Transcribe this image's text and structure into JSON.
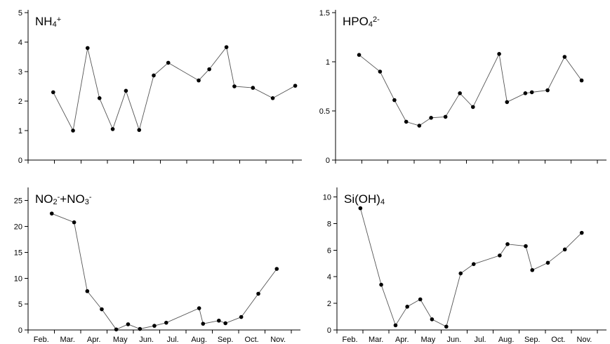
{
  "chart_data": [
    {
      "type": "line",
      "title_parts": [
        {
          "t": "NH"
        },
        {
          "t": "4",
          "pos": "sub"
        },
        {
          "t": "+",
          "pos": "sup"
        }
      ],
      "ylim": [
        0,
        5
      ],
      "yticks": [
        "0",
        "1",
        "2",
        "3",
        "4",
        "5"
      ],
      "ytick_values": [
        0,
        1,
        2,
        3,
        4,
        5
      ],
      "xticks": [],
      "x": [
        1.45,
        2.2,
        2.75,
        3.2,
        3.7,
        4.2,
        4.7,
        5.25,
        5.8,
        6.95,
        7.35,
        8.0,
        8.3,
        9.0,
        9.75,
        10.6
      ],
      "y": [
        2.3,
        1.0,
        3.8,
        2.1,
        1.05,
        2.35,
        1.02,
        2.87,
        3.3,
        2.7,
        3.08,
        3.83,
        2.5,
        2.45,
        2.1,
        2.52
      ]
    },
    {
      "type": "line",
      "title_parts": [
        {
          "t": "HPO"
        },
        {
          "t": "4",
          "pos": "sub"
        },
        {
          "t": "2-",
          "pos": "sup"
        }
      ],
      "ylim": [
        0,
        1.5
      ],
      "yticks": [
        "0",
        "0.5",
        "1",
        "1.5"
      ],
      "ytick_values": [
        0,
        0.5,
        1,
        1.5
      ],
      "xticks": [],
      "x": [
        1.4,
        2.2,
        2.75,
        3.2,
        3.7,
        4.15,
        4.7,
        5.25,
        5.75,
        6.75,
        7.05,
        7.75,
        8.0,
        8.6,
        9.25,
        9.9
      ],
      "y": [
        1.07,
        0.9,
        0.61,
        0.39,
        0.35,
        0.43,
        0.44,
        0.68,
        0.54,
        1.08,
        0.59,
        0.68,
        0.69,
        0.71,
        1.05,
        0.81
      ]
    },
    {
      "type": "line",
      "title_parts": [
        {
          "t": "NO"
        },
        {
          "t": "2",
          "pos": "sub"
        },
        {
          "t": "-",
          "pos": "sup"
        },
        {
          "t": "+NO"
        },
        {
          "t": "3",
          "pos": "sub"
        },
        {
          "t": "-",
          "pos": "sup"
        }
      ],
      "ylim": [
        0,
        27
      ],
      "yticks": [
        "0",
        "5",
        "10",
        "15",
        "20",
        "25"
      ],
      "ytick_values": [
        0,
        5,
        10,
        15,
        20,
        25
      ],
      "xticks": [
        "Feb.",
        "Mar.",
        "Apr.",
        "May",
        "Jun.",
        "Jul.",
        "Aug.",
        "Sep.",
        "Oct.",
        "Nov."
      ],
      "x": [
        1.4,
        2.25,
        2.75,
        3.3,
        3.85,
        4.3,
        4.75,
        5.3,
        5.75,
        7.0,
        7.15,
        7.75,
        8.0,
        8.6,
        9.25,
        9.95
      ],
      "y": [
        22.5,
        20.8,
        7.5,
        4.0,
        0.1,
        1.1,
        0.2,
        0.8,
        1.4,
        4.2,
        1.2,
        1.8,
        1.3,
        2.5,
        7.0,
        11.8
      ]
    },
    {
      "type": "line",
      "title_parts": [
        {
          "t": "Si(OH)"
        },
        {
          "t": "4",
          "pos": "sub"
        }
      ],
      "ylim": [
        0,
        10.5
      ],
      "yticks": [
        "0",
        "2",
        "4",
        "6",
        "8",
        "10"
      ],
      "ytick_values": [
        0,
        2,
        4,
        6,
        8,
        10
      ],
      "xticks": [
        "Feb.",
        "Mar.",
        "Apr.",
        "May",
        "Jun.",
        "Jul.",
        "Aug.",
        "Sep.",
        "Oct.",
        "Nov."
      ],
      "x": [
        1.4,
        2.2,
        2.75,
        3.2,
        3.7,
        4.15,
        4.7,
        5.25,
        5.75,
        6.75,
        7.05,
        7.75,
        8.0,
        8.6,
        9.25,
        9.9
      ],
      "y": [
        9.15,
        3.4,
        0.35,
        1.75,
        2.3,
        0.8,
        0.25,
        4.25,
        4.95,
        5.6,
        6.45,
        6.3,
        4.5,
        5.05,
        6.05,
        7.3
      ]
    }
  ]
}
